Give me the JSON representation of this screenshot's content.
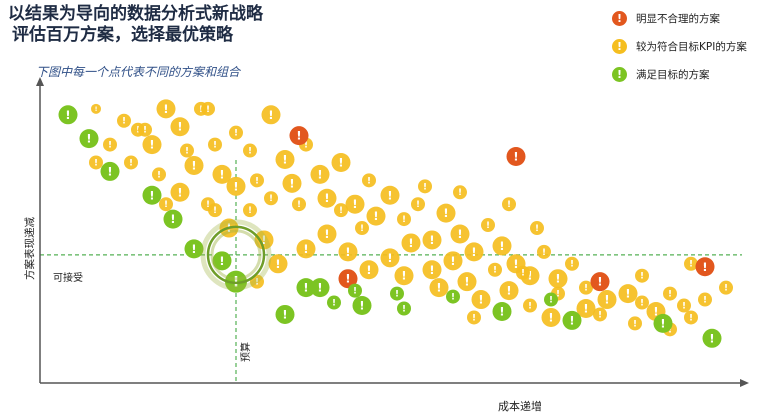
{
  "title_lines": [
    "以结果为导向的数据分析式新战略",
    "评估百万方案，选择最优策略"
  ],
  "subtitle": "下图中每一个点代表不同的方案和组合",
  "legend": [
    {
      "label": "明显不合理的方案",
      "color": "#e2571e",
      "icon": "exclamation-icon"
    },
    {
      "label": "较为符合目标KPI的方案",
      "color": "#f5be1f",
      "icon": "exclamation-icon"
    },
    {
      "label": "满足目标的方案",
      "color": "#7cc423",
      "icon": "exclamation-icon"
    }
  ],
  "colors": {
    "red": "#e2571e",
    "yellow": "#f5be1f",
    "green": "#7cc423",
    "guide": "#55b155",
    "axis": "#555555"
  },
  "chart_data": {
    "type": "scatter",
    "xlabel": "成本递增",
    "ylabel": "方案表现递减",
    "annotations": {
      "acceptable_label": "可接受",
      "budget_label": "预算"
    },
    "reference_lines": {
      "budget_x": 28,
      "acceptable_y": 43
    },
    "xlim": [
      0,
      100
    ],
    "ylim": [
      0,
      100
    ],
    "series": [
      {
        "color_key": "green",
        "points": [
          [
            4,
            90,
            3
          ],
          [
            7,
            82,
            3
          ],
          [
            10,
            71,
            3
          ],
          [
            16,
            63,
            3
          ],
          [
            19,
            55,
            3
          ],
          [
            22,
            45,
            3
          ],
          [
            26,
            41,
            3
          ],
          [
            28,
            34,
            4
          ],
          [
            40,
            32,
            3
          ],
          [
            42,
            27,
            2
          ],
          [
            46,
            26,
            3
          ],
          [
            52,
            25,
            2
          ],
          [
            66,
            24,
            3
          ],
          [
            76,
            21,
            3
          ],
          [
            89,
            20,
            3
          ],
          [
            96,
            15,
            3
          ],
          [
            35,
            23,
            3
          ],
          [
            38,
            32,
            3
          ],
          [
            45,
            31,
            2
          ],
          [
            51,
            30,
            2
          ],
          [
            59,
            29,
            2
          ],
          [
            73,
            28,
            2
          ]
        ]
      },
      {
        "color_key": "red",
        "points": [
          [
            37,
            83,
            3
          ],
          [
            68,
            76,
            3
          ],
          [
            44,
            35,
            3
          ],
          [
            80,
            34,
            3
          ],
          [
            95,
            39,
            3
          ]
        ]
      },
      {
        "color_key": "yellow",
        "points": [
          [
            8,
            92,
            1
          ],
          [
            12,
            88,
            2
          ],
          [
            14,
            85,
            2
          ],
          [
            16,
            80,
            3
          ],
          [
            18,
            92,
            3
          ],
          [
            20,
            86,
            3
          ],
          [
            21,
            78,
            2
          ],
          [
            22,
            73,
            3
          ],
          [
            23,
            92,
            2
          ],
          [
            25,
            80,
            2
          ],
          [
            26,
            70,
            3
          ],
          [
            28,
            84,
            2
          ],
          [
            30,
            78,
            2
          ],
          [
            33,
            90,
            3
          ],
          [
            35,
            75,
            3
          ],
          [
            36,
            67,
            3
          ],
          [
            38,
            80,
            2
          ],
          [
            40,
            70,
            3
          ],
          [
            41,
            62,
            3
          ],
          [
            43,
            74,
            3
          ],
          [
            45,
            60,
            3
          ],
          [
            47,
            68,
            2
          ],
          [
            48,
            56,
            3
          ],
          [
            50,
            63,
            3
          ],
          [
            52,
            55,
            2
          ],
          [
            54,
            60,
            2
          ],
          [
            56,
            48,
            3
          ],
          [
            58,
            57,
            3
          ],
          [
            60,
            50,
            3
          ],
          [
            62,
            44,
            3
          ],
          [
            64,
            53,
            2
          ],
          [
            66,
            46,
            3
          ],
          [
            68,
            40,
            3
          ],
          [
            70,
            36,
            3
          ],
          [
            72,
            44,
            2
          ],
          [
            74,
            35,
            3
          ],
          [
            76,
            40,
            2
          ],
          [
            78,
            32,
            2
          ],
          [
            81,
            28,
            3
          ],
          [
            84,
            30,
            3
          ],
          [
            86,
            36,
            2
          ],
          [
            88,
            24,
            3
          ],
          [
            90,
            30,
            2
          ],
          [
            93,
            40,
            2
          ],
          [
            95,
            28,
            2
          ],
          [
            98,
            32,
            2
          ],
          [
            10,
            80,
            2
          ],
          [
            13,
            74,
            2
          ],
          [
            17,
            70,
            2
          ],
          [
            20,
            64,
            3
          ],
          [
            24,
            60,
            2
          ],
          [
            27,
            52,
            3
          ],
          [
            30,
            58,
            2
          ],
          [
            32,
            48,
            3
          ],
          [
            34,
            40,
            3
          ],
          [
            38,
            45,
            3
          ],
          [
            41,
            50,
            3
          ],
          [
            44,
            44,
            3
          ],
          [
            47,
            38,
            3
          ],
          [
            50,
            42,
            3
          ],
          [
            53,
            47,
            3
          ],
          [
            56,
            38,
            3
          ],
          [
            59,
            41,
            3
          ],
          [
            61,
            34,
            3
          ],
          [
            63,
            28,
            3
          ],
          [
            67,
            31,
            3
          ],
          [
            70,
            26,
            2
          ],
          [
            73,
            22,
            3
          ],
          [
            78,
            25,
            3
          ],
          [
            85,
            20,
            2
          ],
          [
            90,
            18,
            2
          ],
          [
            93,
            22,
            2
          ],
          [
            24,
            92,
            2
          ],
          [
            25,
            58,
            2
          ],
          [
            31,
            68,
            2
          ],
          [
            37,
            60,
            2
          ],
          [
            46,
            52,
            2
          ],
          [
            55,
            66,
            2
          ],
          [
            60,
            64,
            2
          ],
          [
            65,
            38,
            2
          ],
          [
            67,
            60,
            2
          ],
          [
            71,
            52,
            2
          ],
          [
            31,
            34,
            2
          ],
          [
            8,
            74,
            2
          ],
          [
            15,
            85,
            2
          ],
          [
            28,
            66,
            3
          ],
          [
            33,
            62,
            2
          ],
          [
            43,
            58,
            2
          ],
          [
            52,
            36,
            3
          ],
          [
            57,
            32,
            3
          ],
          [
            62,
            22,
            2
          ],
          [
            69,
            37,
            2
          ],
          [
            74,
            30,
            2
          ],
          [
            80,
            23,
            2
          ],
          [
            86,
            27,
            2
          ],
          [
            92,
            26,
            2
          ],
          [
            18,
            60,
            2
          ]
        ]
      }
    ]
  }
}
